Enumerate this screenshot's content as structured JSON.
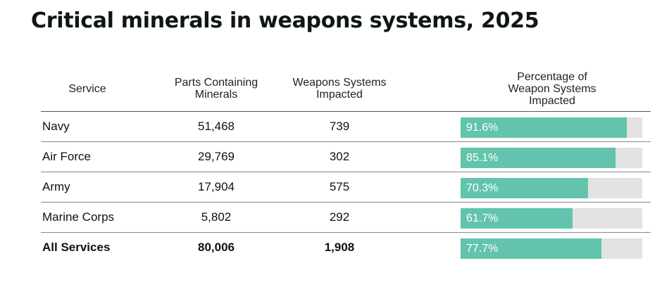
{
  "title": "Critical minerals in weapons systems, 2025",
  "headers": {
    "service": "Service",
    "parts": [
      "Parts Containing",
      "Minerals"
    ],
    "weapons": [
      "Weapons Systems",
      "Impacted"
    ],
    "percentage": [
      "Percentage of",
      "Weapon Systems",
      "Impacted"
    ]
  },
  "chart_data": {
    "type": "table",
    "title": "Critical minerals in weapons systems, 2025",
    "columns": [
      "Service",
      "Parts Containing Minerals",
      "Weapons Systems Impacted",
      "Percentage of Weapon Systems Impacted"
    ],
    "rows": [
      {
        "service": "Navy",
        "parts": "51,468",
        "weapons": "739",
        "pct_label": "91.6%",
        "pct": 91.6,
        "bold": false
      },
      {
        "service": "Air Force",
        "parts": "29,769",
        "weapons": "302",
        "pct_label": "85.1%",
        "pct": 85.1,
        "bold": false
      },
      {
        "service": "Army",
        "parts": "17,904",
        "weapons": "575",
        "pct_label": "70.3%",
        "pct": 70.3,
        "bold": false
      },
      {
        "service": "Marine Corps",
        "parts": "5,802",
        "weapons": "292",
        "pct_label": "61.7%",
        "pct": 61.7,
        "bold": false
      },
      {
        "service": "All Services",
        "parts": "80,006",
        "weapons": "1,908",
        "pct_label": "77.7%",
        "pct": 77.7,
        "bold": true
      }
    ],
    "pct_range": [
      0,
      100
    ],
    "colors": {
      "bar": "#62c4ad",
      "track": "#e3e3e3"
    }
  }
}
